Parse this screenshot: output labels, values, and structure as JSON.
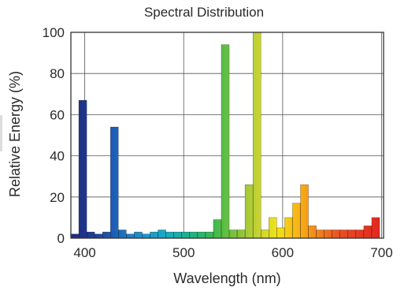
{
  "chart_data": {
    "type": "bar",
    "title": "Spectral Distribution",
    "xlabel": "Wavelength (nm)",
    "ylabel": "Relative Energy (%)",
    "xlim": [
      386,
      702
    ],
    "ylim": [
      0,
      100
    ],
    "xticks": [
      400,
      500,
      600,
      700
    ],
    "yticks": [
      0,
      20,
      40,
      60,
      80,
      100
    ],
    "grid": true,
    "bin_width_nm": 8,
    "bins_start_nm": [
      386,
      394,
      402,
      410,
      418,
      426,
      434,
      442,
      450,
      458,
      466,
      474,
      482,
      490,
      498,
      506,
      514,
      522,
      530,
      538,
      546,
      554,
      562,
      570,
      578,
      586,
      594,
      602,
      610,
      618,
      626,
      634,
      642,
      650,
      658,
      666,
      674,
      682,
      690
    ],
    "values": [
      2,
      67,
      3,
      2,
      3,
      54,
      4,
      2,
      3,
      2,
      3,
      4,
      3,
      3,
      3,
      3,
      3,
      3,
      9,
      94,
      4,
      4,
      26,
      100,
      4,
      10,
      5,
      10,
      17,
      26,
      6,
      4,
      4,
      4,
      4,
      4,
      4,
      6,
      10
    ]
  }
}
